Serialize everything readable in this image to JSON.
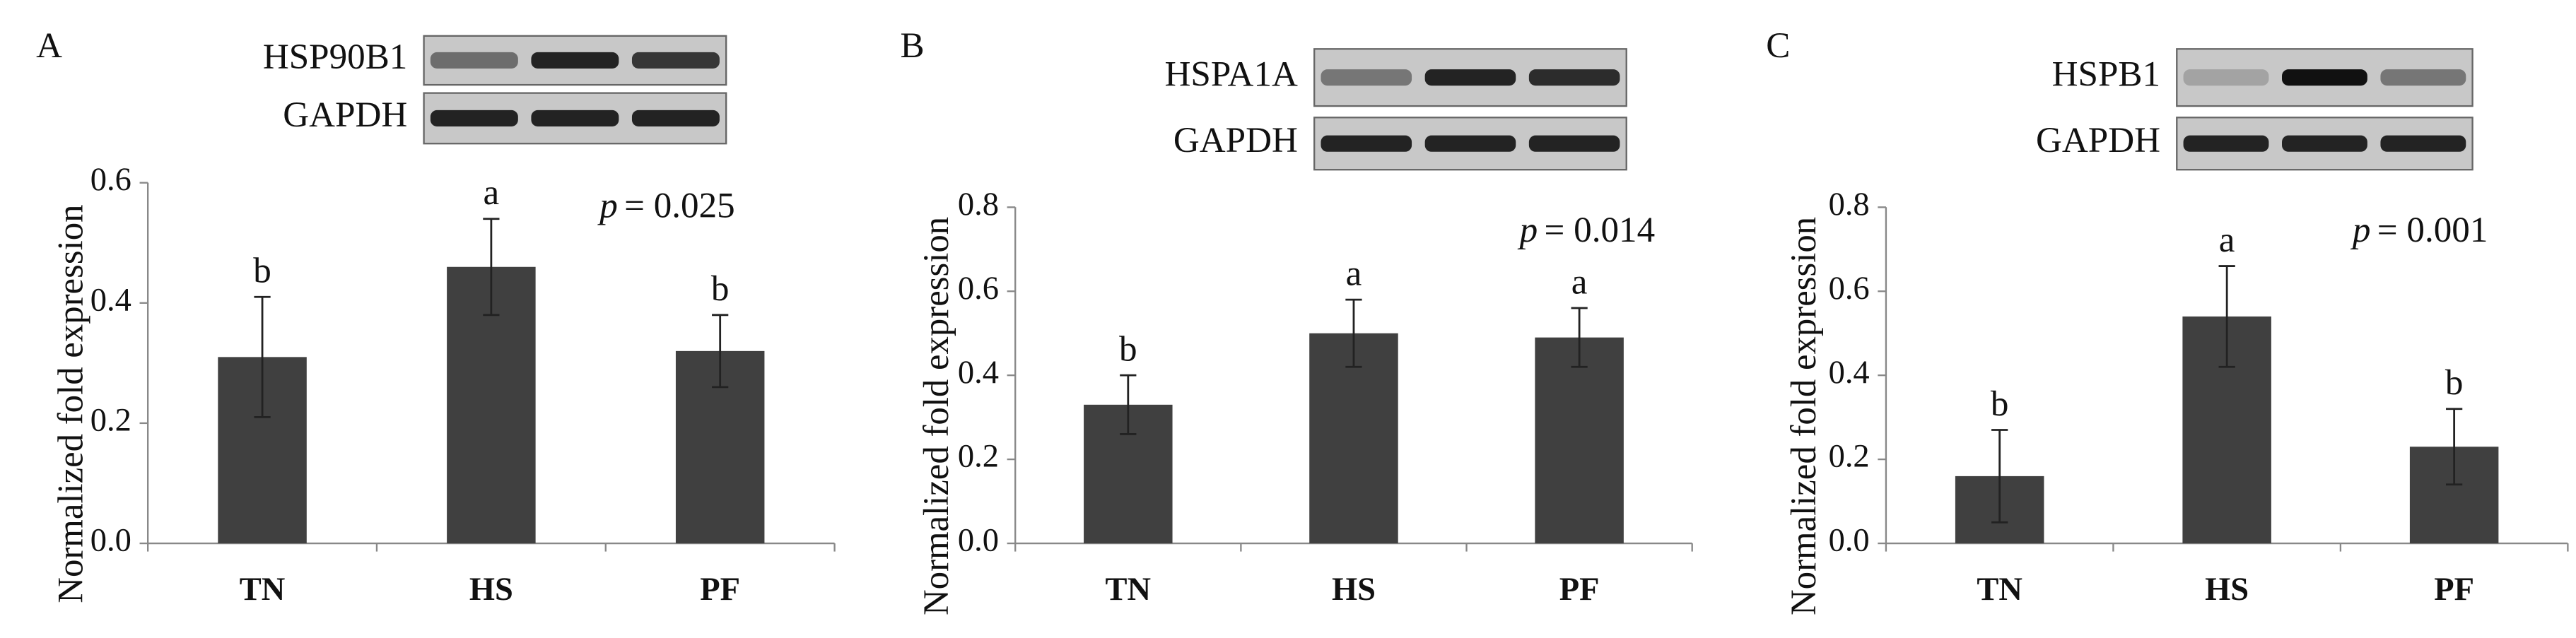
{
  "chart_data": [
    {
      "type": "bar",
      "panel": "A",
      "blot_labels": [
        "HSP90B1",
        "GAPDH"
      ],
      "y_label": "Normalized fold expression",
      "categories": [
        "TN",
        "HS",
        "PF"
      ],
      "values": [
        0.31,
        0.46,
        0.32
      ],
      "errors": [
        0.1,
        0.08,
        0.06
      ],
      "sig_labels": [
        "b",
        "a",
        "b"
      ],
      "p_symbol": "p",
      "p_text": "= 0.025",
      "color": "#404040",
      "ylim": [
        0,
        0.6
      ],
      "yticks": [
        {
          "value": 0,
          "label": "0.0"
        },
        0.2,
        0.4,
        0.6
      ]
    },
    {
      "type": "bar",
      "panel": "B",
      "blot_labels": [
        "HSPA1A",
        "GAPDH"
      ],
      "y_label": "Normalized fold expression",
      "categories": [
        "TN",
        "HS",
        "PF"
      ],
      "values": [
        0.33,
        0.5,
        0.49
      ],
      "errors": [
        0.07,
        0.08,
        0.07
      ],
      "sig_labels": [
        "b",
        "a",
        "a"
      ],
      "p_symbol": "p",
      "p_text": "= 0.014",
      "color": "#404040",
      "ylim": [
        0,
        0.8
      ],
      "yticks": [
        {
          "value": 0,
          "label": "0.0"
        },
        0.2,
        0.4,
        0.6,
        0.8
      ]
    },
    {
      "type": "bar",
      "panel": "C",
      "blot_labels": [
        "HSPB1",
        "GAPDH"
      ],
      "y_label": "Normalized fold expression",
      "categories": [
        "TN",
        "HS",
        "PF"
      ],
      "values": [
        0.16,
        0.54,
        0.23
      ],
      "errors": [
        0.11,
        0.12,
        0.09
      ],
      "sig_labels": [
        "b",
        "a",
        "b"
      ],
      "p_symbol": "p",
      "p_text": "= 0.001",
      "color": "#404040",
      "ylim": [
        0,
        0.8
      ],
      "yticks": [
        {
          "value": 0,
          "label": "0.0"
        },
        0.2,
        0.4,
        0.6,
        0.8
      ]
    }
  ]
}
